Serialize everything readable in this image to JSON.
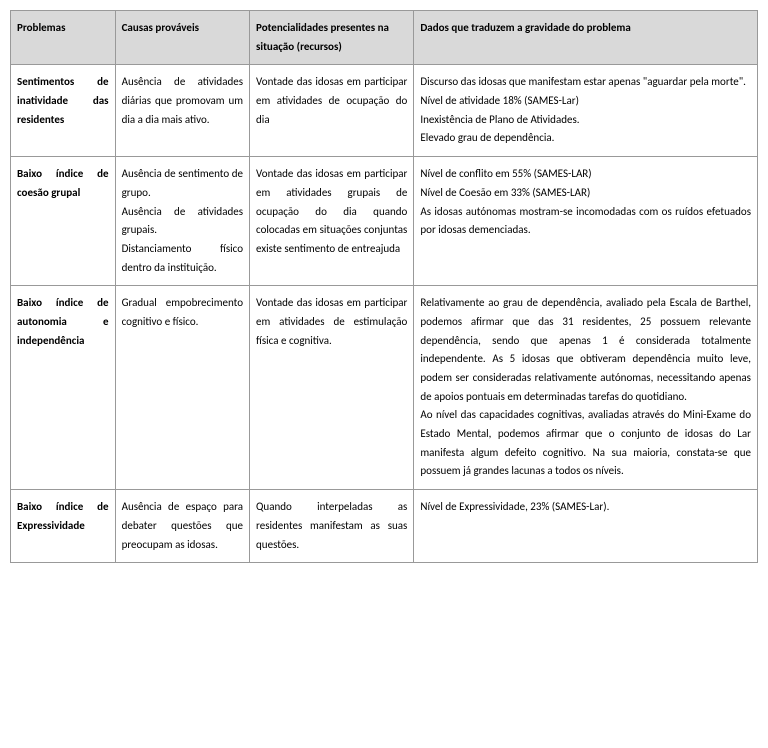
{
  "table": {
    "headers": {
      "col1": "Problemas",
      "col2": "Causas prováveis",
      "col3": "Potencialidades presentes na situação (recursos)",
      "col4": "Dados que traduzem a gravidade do problema"
    },
    "rows": [
      {
        "problemas": "Sentimentos de inatividade das residentes",
        "causas": "Ausência de atividades diárias que promovam um dia a dia mais ativo.",
        "potencialidades": "Vontade das idosas em participar em atividades de ocupação do dia",
        "dados_1": "Discurso das idosas que manifestam estar apenas \"aguardar pela morte\".",
        "dados_2": "Nível de atividade 18% (SAMES-Lar)",
        "dados_3": "Inexistência de Plano de Atividades.",
        "dados_4": "Elevado grau de dependência."
      },
      {
        "problemas": "Baixo índice de coesão grupal",
        "causas_1": "Ausência de sentimento de grupo.",
        "causas_2": "Ausência de atividades grupais.",
        "causas_3": "Distanciamento físico dentro da instituição.",
        "potencialidades": "Vontade das idosas em participar em atividades grupais de ocupação do dia quando colocadas em situações conjuntas existe sentimento de entreajuda",
        "dados_1": "Nível de conflito em 55% (SAMES-LAR)",
        "dados_2": "Nível de Coesão em 33% (SAMES-LAR)",
        "dados_3": "As idosas autónomas mostram-se incomodadas com os ruídos efetuados por idosas demenciadas."
      },
      {
        "problemas": "Baixo índice de autonomia e independência",
        "causas": "Gradual empobrecimento cognitivo e físico.",
        "potencialidades": "Vontade das idosas em participar em atividades de estimulação física e cognitiva.",
        "dados_1": "Relativamente ao grau de dependência, avaliado pela Escala de Barthel, podemos afirmar que das 31 residentes, 25 possuem relevante dependência, sendo que apenas 1 é considerada totalmente independente. As 5 idosas que obtiveram dependência muito leve, podem ser consideradas relativamente autónomas, necessitando apenas de apoios pontuais em determinadas tarefas do quotidiano.",
        "dados_2": "Ao nível das capacidades cognitivas, avaliadas através do Mini-Exame do Estado Mental, podemos afirmar que o conjunto de idosas do Lar manifesta algum defeito cognitivo. Na sua maioria, constata-se que possuem já grandes lacunas a todos os níveis."
      },
      {
        "problemas": "Baixo índice de Expressividade",
        "causas": "Ausência de espaço para debater questões que preocupam as idosas.",
        "potencialidades": "Quando interpeladas as residentes manifestam as suas questões.",
        "dados": "Nível de Expressividade, 23% (SAMES-Lar)."
      }
    ],
    "styling": {
      "header_bg": "#d9d9d9",
      "border_color": "#999999",
      "font_size": 11,
      "line_height": 1.7,
      "col_widths_pct": [
        14,
        18,
        22,
        46
      ]
    }
  }
}
